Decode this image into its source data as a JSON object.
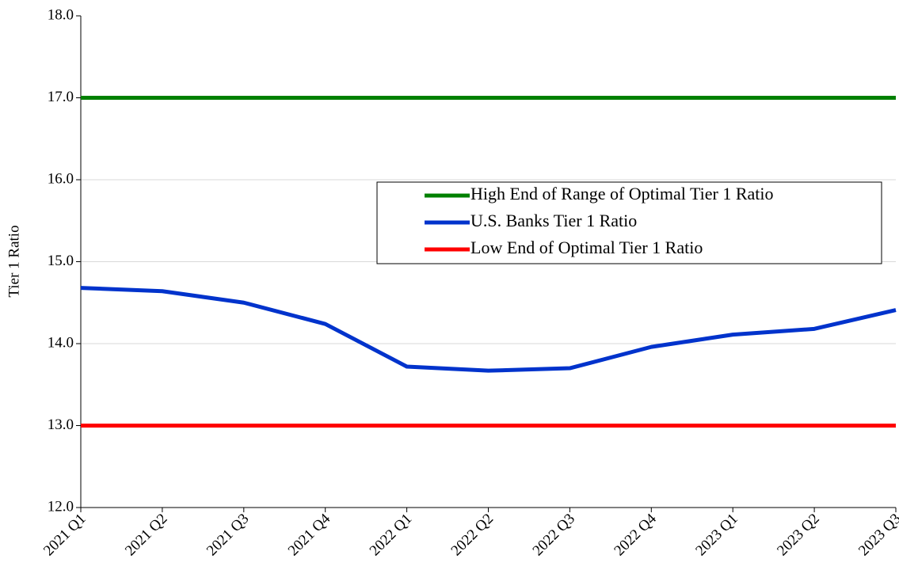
{
  "chart_data": {
    "type": "line",
    "y_label": "Tier 1 Ratio",
    "categories": [
      "2021 Q1",
      "2021 Q2",
      "2021 Q3",
      "2021 Q4",
      "2022 Q1",
      "2022 Q2",
      "2022 Q3",
      "2022 Q4",
      "2023 Q1",
      "2023 Q2",
      "2023 Q3"
    ],
    "series": [
      {
        "name": "High End of Range of Optimal Tier 1 Ratio",
        "color": "#008000",
        "values": [
          17,
          17,
          17,
          17,
          17,
          17,
          17,
          17,
          17,
          17,
          17
        ]
      },
      {
        "name": "U.S. Banks Tier 1 Ratio",
        "color": "#0033cc",
        "values": [
          14.68,
          14.64,
          14.5,
          14.24,
          13.72,
          13.67,
          13.7,
          13.96,
          14.11,
          14.18,
          14.41
        ]
      },
      {
        "name": "Low End of Optimal Tier 1 Ratio",
        "color": "#ff0000",
        "values": [
          13,
          13,
          13,
          13,
          13,
          13,
          13,
          13,
          13,
          13,
          13
        ]
      }
    ],
    "ylim": [
      12,
      18
    ],
    "yticks": [
      {
        "value": 12,
        "label": "12.0"
      },
      {
        "value": 13,
        "label": "13.0"
      },
      {
        "value": 14,
        "label": "14.0"
      },
      {
        "value": 15,
        "label": "15.0"
      },
      {
        "value": 16,
        "label": "16.0"
      },
      {
        "value": 17,
        "label": "17.0"
      },
      {
        "value": 18,
        "label": "18.0"
      }
    ],
    "grid": true
  }
}
